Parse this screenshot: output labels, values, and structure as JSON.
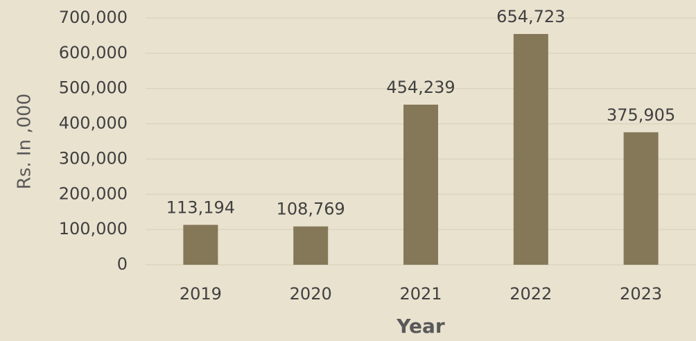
{
  "chart_data": {
    "type": "bar",
    "x_label": "Year",
    "y_label": "Rs. In ,000",
    "categories": [
      "2019",
      "2020",
      "2021",
      "2022",
      "2023"
    ],
    "values": [
      113194,
      108769,
      454239,
      654723,
      375905
    ],
    "value_labels": [
      "113,194",
      "108,769",
      "454,239",
      "654,723",
      "375,905"
    ],
    "color": "#857858",
    "ylim": [
      0,
      700000
    ],
    "yticks": [
      0,
      {
        "value": 100000,
        "label": "100,000"
      },
      {
        "value": 200000,
        "label": "200,000"
      },
      {
        "value": 300000,
        "label": "300,000"
      },
      {
        "value": 400000,
        "label": "400,000"
      },
      {
        "value": 500000,
        "label": "500,000"
      },
      {
        "value": 600000,
        "label": "600,000"
      },
      {
        "value": 700000,
        "label": "700,000"
      }
    ],
    "grid": true
  }
}
